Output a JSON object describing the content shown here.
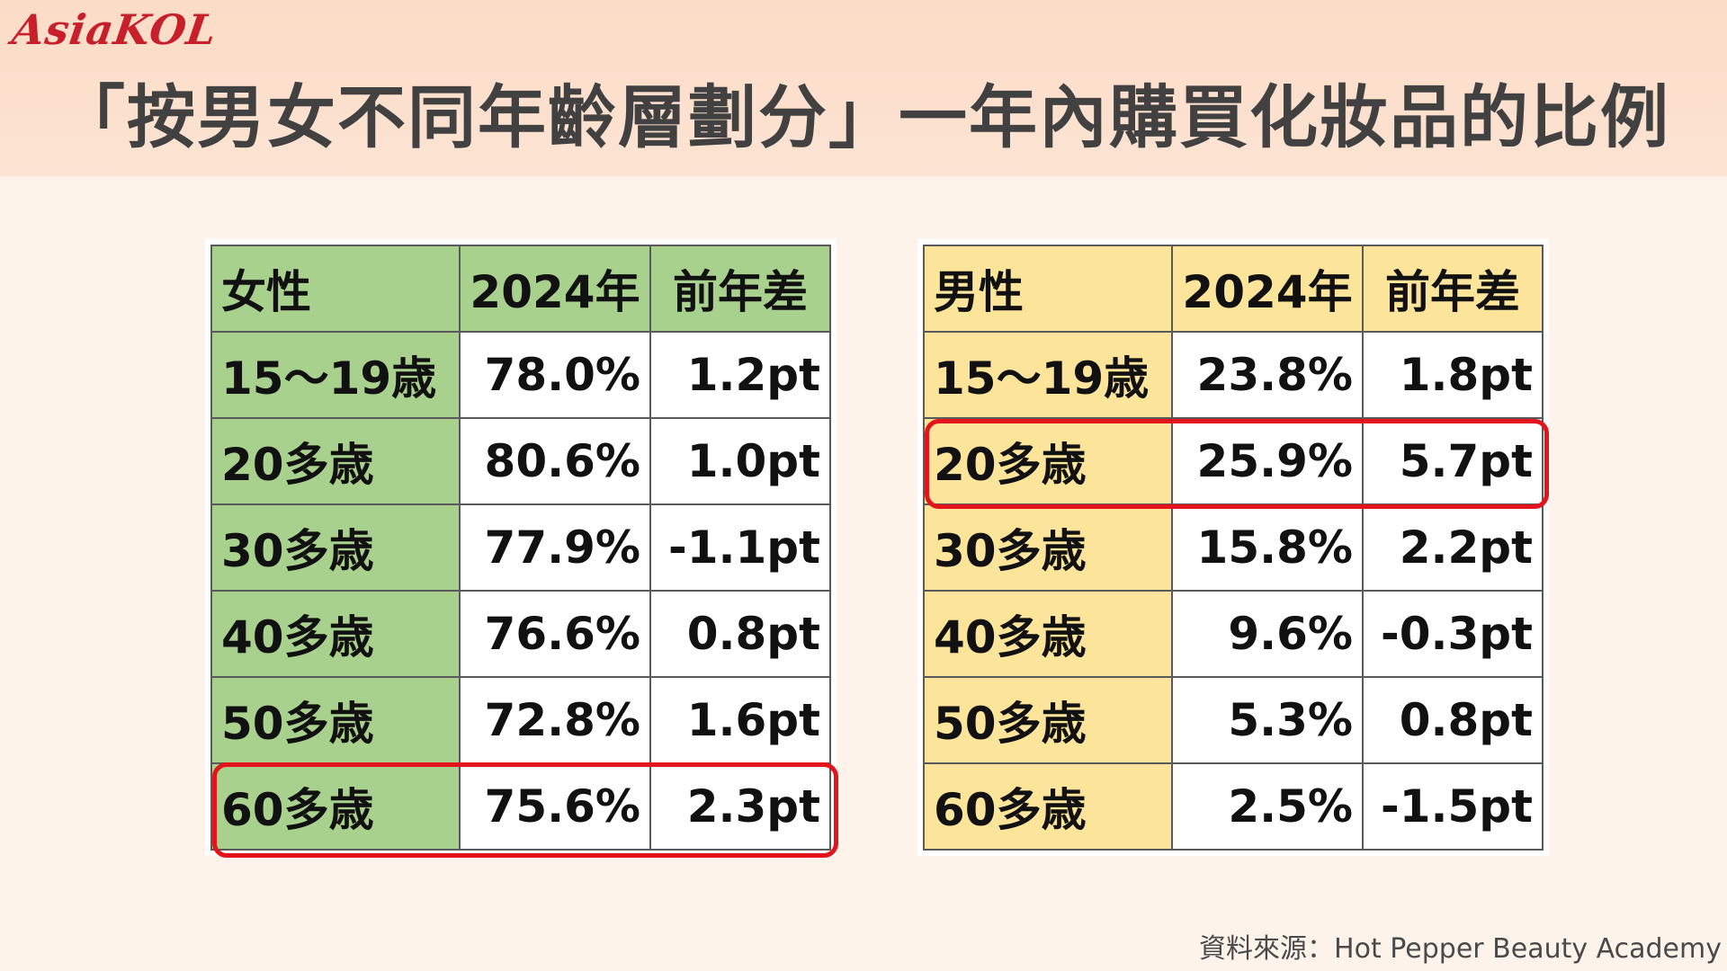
{
  "logo": {
    "text": "AsiaKOL",
    "color": "#c8202a"
  },
  "title": "「按男女不同年齡層劃分」一年內購買化妝品的比例",
  "colors": {
    "female_header": "#a9d18e",
    "male_header": "#fde49b",
    "highlight": "#e3141b"
  },
  "female_table": {
    "headers": [
      "女性",
      "2024年",
      "前年差"
    ],
    "rows": [
      [
        "15～19歳",
        "78.0%",
        "1.2pt"
      ],
      [
        "20多歳",
        "80.6%",
        "1.0pt"
      ],
      [
        "30多歳",
        "77.9%",
        "-1.1pt"
      ],
      [
        "40多歳",
        "76.6%",
        "0.8pt"
      ],
      [
        "50多歳",
        "72.8%",
        "1.6pt"
      ],
      [
        "60多歳",
        "75.6%",
        "2.3pt"
      ]
    ],
    "highlighted_row": "60多歳"
  },
  "male_table": {
    "headers": [
      "男性",
      "2024年",
      "前年差"
    ],
    "rows": [
      [
        "15～19歳",
        "23.8%",
        "1.8pt"
      ],
      [
        "20多歳",
        "25.9%",
        "5.7pt"
      ],
      [
        "30多歳",
        "15.8%",
        "2.2pt"
      ],
      [
        "40多歳",
        "9.6%",
        "-0.3pt"
      ],
      [
        "50多歳",
        "5.3%",
        "0.8pt"
      ],
      [
        "60多歳",
        "2.5%",
        "-1.5pt"
      ]
    ],
    "highlighted_row": "20多歳"
  },
  "source": "資料來源：Hot Pepper Beauty Academy"
}
